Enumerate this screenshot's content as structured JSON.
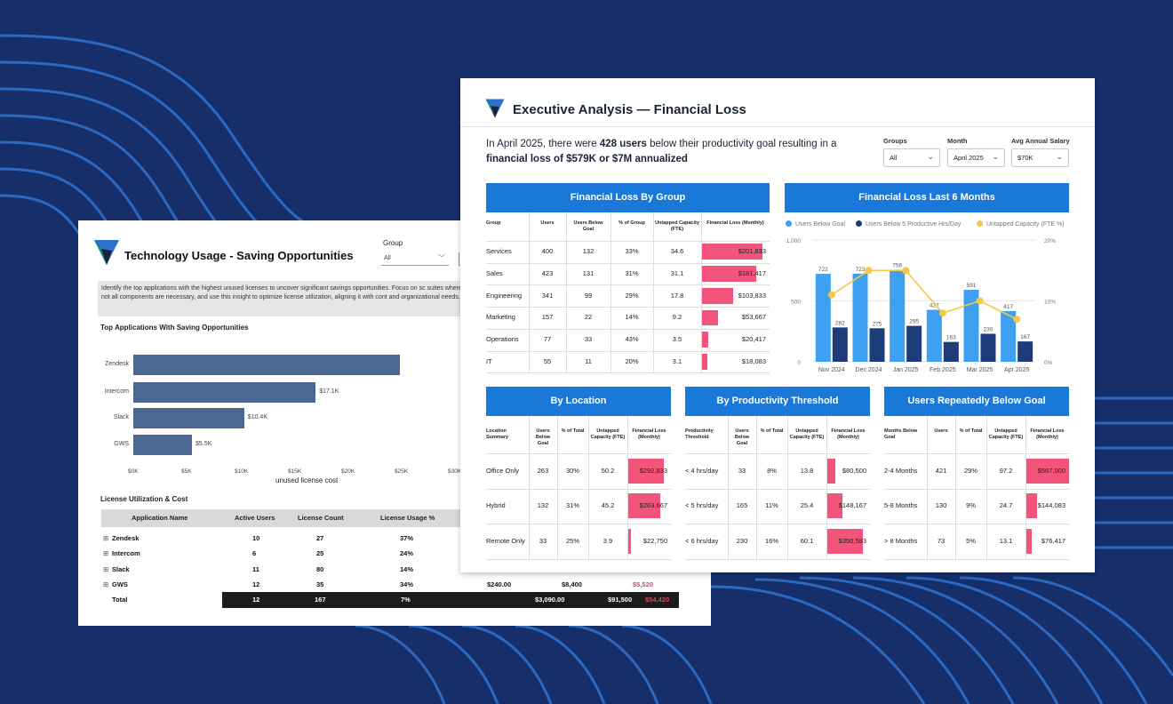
{
  "colors": {
    "background": "#162f6a",
    "accent": "#1a78d8",
    "loss_bar": "#f2547b",
    "bar_navy": "#1f3c7a",
    "bar_light": "#3ea0f0",
    "line_yellow": "#f5c842",
    "back_bar": "#4b6794"
  },
  "tech_panel": {
    "title": "Technology Usage - Saving Opportunities",
    "group_label": "Group",
    "group_value": "All",
    "description": "Identify the top applications with the highest unused licenses to uncover significant savings opportunities. Focus on sc suites where not all components are necessary, and use this insight to optimize license utilization, aligning it with cont and organizational needs.",
    "top_apps_title": "Top Applications With Saving Opportunities",
    "apps": [
      {
        "name": "Zendesk",
        "value_label": "",
        "value": 25
      },
      {
        "name": "Intercom",
        "value_label": "$17.1K",
        "value": 17.1
      },
      {
        "name": "Slack",
        "value_label": "$10.4K",
        "value": 10.4
      },
      {
        "name": "GWS",
        "value_label": "$5.5K",
        "value": 5.5
      }
    ],
    "x_ticks": [
      "$0K",
      "$5K",
      "$10K",
      "$15K",
      "$20K",
      "$25K",
      "$30K"
    ],
    "x_caption": "unused license cost",
    "license_title": "License Utilization & Cost",
    "license_headers": [
      "Application Name",
      "Active Users",
      "License Count",
      "License Usage %"
    ],
    "license_rows": [
      {
        "name": "Zendesk",
        "active": "10",
        "count": "27",
        "usage": "37%",
        "c1": "",
        "c2": "",
        "c3": ""
      },
      {
        "name": "Intercom",
        "active": "6",
        "count": "25",
        "usage": "24%",
        "c1": "",
        "c2": "",
        "c3": ""
      },
      {
        "name": "Slack",
        "active": "11",
        "count": "80",
        "usage": "14%",
        "c1": "",
        "c2": "",
        "c3": ""
      },
      {
        "name": "GWS",
        "active": "12",
        "count": "35",
        "usage": "34%",
        "c1": "$240.00",
        "c2": "$8,400",
        "c3": "$5,520"
      }
    ],
    "license_total": {
      "label": "Total",
      "active": "12",
      "count": "167",
      "usage": "7%",
      "c1": "$3,090.00",
      "c2": "$91,500",
      "c3": "$54,420"
    }
  },
  "exec_panel": {
    "title": "Executive Analysis — Financial Loss",
    "summary_pre": "In April 2025, there were ",
    "summary_users": "428 users",
    "summary_mid": " below their productivity goal resulting in a ",
    "summary_loss": "financial loss of $579K or $7M annualized",
    "filters": [
      {
        "label": "Groups",
        "value": "All"
      },
      {
        "label": "Month",
        "value": "April 2025"
      },
      {
        "label": "Avg Annual Salary",
        "value": "$70K"
      }
    ],
    "by_group": {
      "title": "Financial Loss By Group",
      "headers": [
        "Group",
        "Users",
        "Users Below Goal",
        "% of Group",
        "Untapped Capacity (FTE)",
        "Financial Loss (Monthly)"
      ],
      "rows": [
        {
          "group": "Services",
          "users": "400",
          "below": "132",
          "pct": "33%",
          "fte": "34.6",
          "loss": "$201,833",
          "loss_value": 201833
        },
        {
          "group": "Sales",
          "users": "423",
          "below": "131",
          "pct": "31%",
          "fte": "31.1",
          "loss": "$181,417",
          "loss_value": 181417
        },
        {
          "group": "Engineering",
          "users": "341",
          "below": "99",
          "pct": "29%",
          "fte": "17.8",
          "loss": "$103,833",
          "loss_value": 103833
        },
        {
          "group": "Marketing",
          "users": "157",
          "below": "22",
          "pct": "14%",
          "fte": "9.2",
          "loss": "$53,667",
          "loss_value": 53667
        },
        {
          "group": "Operations",
          "users": "77",
          "below": "33",
          "pct": "43%",
          "fte": "3.5",
          "loss": "$20,417",
          "loss_value": 20417
        },
        {
          "group": "IT",
          "users": "55",
          "below": "11",
          "pct": "20%",
          "fte": "3.1",
          "loss": "$18,083",
          "loss_value": 18083
        }
      ]
    },
    "last6": {
      "title": "Financial Loss Last 6 Months",
      "legend": [
        "Users Below Goal",
        "Users Below 5 Productive Hrs/Day",
        "Untapped Capacity (FTE %)"
      ],
      "months": [
        "Nov 2024",
        "Dec 2024",
        "Jan 2025",
        "Feb 2025",
        "Mar 2025",
        "Apr 2025"
      ],
      "below_goal": [
        722,
        723,
        756,
        427,
        591,
        417
      ],
      "below_5": [
        282,
        275,
        295,
        163,
        230,
        167
      ],
      "below_goal_labels": [
        "722",
        "723",
        "756",
        "427",
        "591",
        "417"
      ],
      "below_5_labels": [
        "282",
        "275",
        "295",
        "163",
        "230",
        "167"
      ],
      "capacity_pct": [
        11,
        15,
        15,
        8,
        10,
        7
      ],
      "left_ticks": [
        "1,000",
        "500",
        "0"
      ],
      "right_ticks": [
        "20%",
        "10%",
        "0%"
      ]
    },
    "by_location": {
      "title": "By Location",
      "headers": [
        "Location Summary",
        "Users Below Goal",
        "% of Total",
        "Untapped Capacity (FTE)",
        "Financial Loss (Monthly)"
      ],
      "rows": [
        {
          "label": "Office Only",
          "below": "263",
          "pct": "30%",
          "fte": "50.2",
          "loss": "$292,833",
          "loss_value": 292833
        },
        {
          "label": "Hybrid",
          "below": "132",
          "pct": "31%",
          "fte": "45.2",
          "loss": "$263,667",
          "loss_value": 263667
        },
        {
          "label": "Remote Only",
          "below": "33",
          "pct": "25%",
          "fte": "3.9",
          "loss": "$22,750",
          "loss_value": 22750
        }
      ]
    },
    "by_threshold": {
      "title": "By Productivity Threshold",
      "headers": [
        "Productivity Threshold",
        "Users Below Goal",
        "% of Total",
        "Untapped Capacity (FTE)",
        "Financial Loss (Monthly)"
      ],
      "rows": [
        {
          "label": "< 4 hrs/day",
          "below": "33",
          "pct": "8%",
          "fte": "13.8",
          "loss": "$80,500",
          "loss_value": 80500
        },
        {
          "label": "< 5 hrs/day",
          "below": "165",
          "pct": "11%",
          "fte": "25.4",
          "loss": "$148,167",
          "loss_value": 148167
        },
        {
          "label": "< 6 hrs/day",
          "below": "230",
          "pct": "16%",
          "fte": "60.1",
          "loss": "$350,583",
          "loss_value": 350583
        }
      ]
    },
    "repeated": {
      "title": "Users Repeatedly Below Goal",
      "headers": [
        "Months Below Goal",
        "Users",
        "% of Total",
        "Untapped Capacity (FTE)",
        "Financial Loss (Monthly)"
      ],
      "rows": [
        {
          "label": "2-4 Months",
          "below": "421",
          "pct": "29%",
          "fte": "97.2",
          "loss": "$567,000",
          "loss_value": 567000
        },
        {
          "label": "5-8 Months",
          "below": "130",
          "pct": "9%",
          "fte": "24.7",
          "loss": "$144,083",
          "loss_value": 144083
        },
        {
          "label": "> 8 Months",
          "below": "73",
          "pct": "5%",
          "fte": "13.1",
          "loss": "$76,417",
          "loss_value": 76417
        }
      ]
    }
  }
}
